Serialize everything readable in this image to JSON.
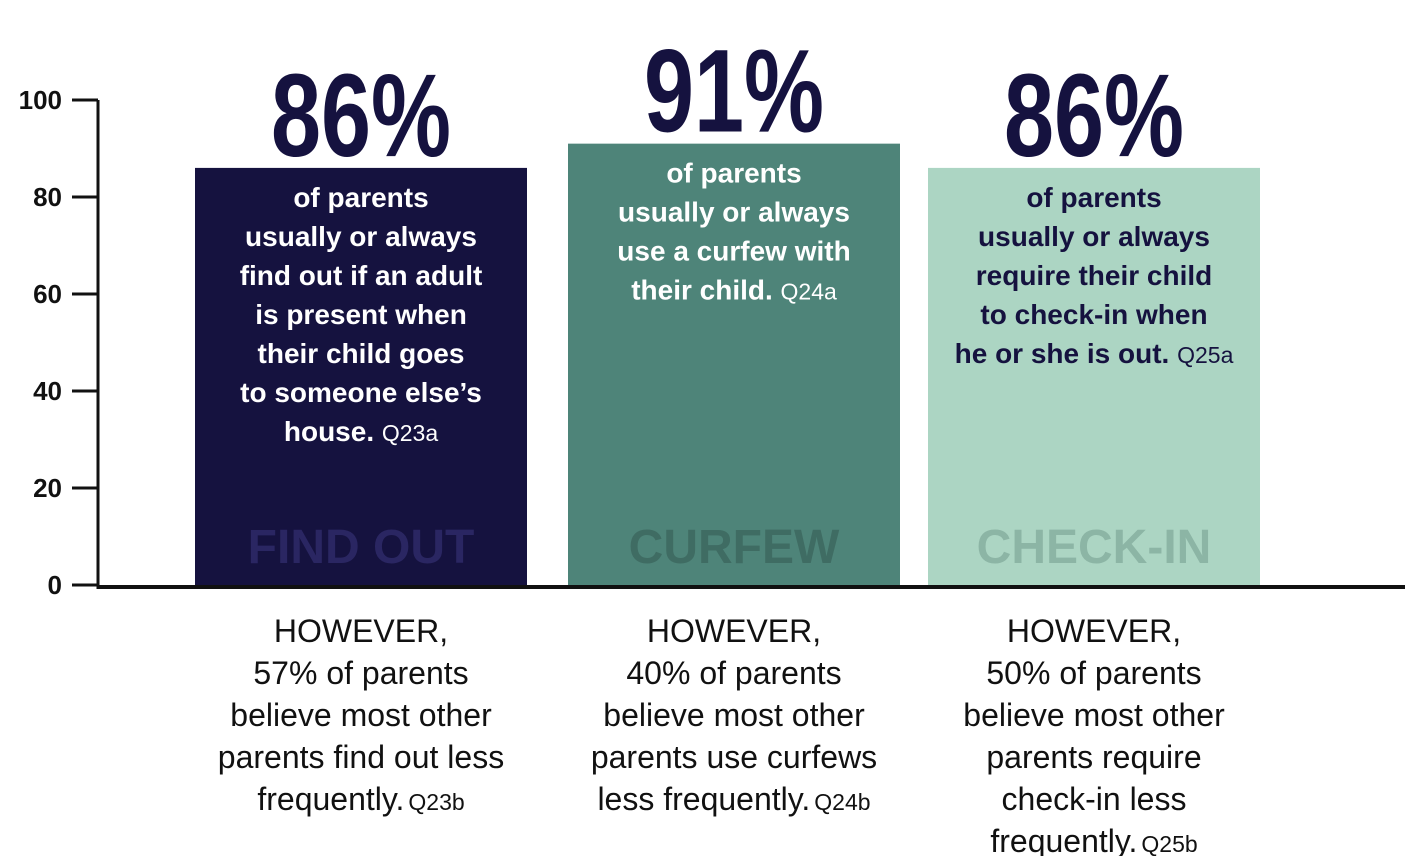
{
  "chart_data": {
    "type": "bar",
    "categories": [
      "FIND OUT",
      "CURFEW",
      "CHECK-IN"
    ],
    "values": [
      86,
      91,
      86
    ],
    "value_labels": [
      "86%",
      "91%",
      "86%"
    ],
    "colors": [
      "#15123f",
      "#4e8479",
      "#acd5c3"
    ],
    "description_colors": [
      "#ffffff",
      "#ffffff",
      "#15123f"
    ],
    "category_colors": [
      "#2a2662",
      "#3f6c63",
      "#8cb5a5"
    ],
    "descriptions": [
      [
        "of parents",
        "usually or always",
        "find out if an adult",
        "is present when",
        "their child goes",
        "to someone else’s",
        "house."
      ],
      [
        "of parents",
        "usually or always",
        "use a curfew with",
        "their child."
      ],
      [
        "of parents",
        "usually or always",
        "require their child",
        "to check-in when",
        "he or she is out."
      ]
    ],
    "description_codes": [
      "Q23a",
      "Q24a",
      "Q25a"
    ],
    "notes": [
      [
        "HOWEVER,",
        "57% of parents",
        "believe most other",
        "parents find out less",
        "frequently."
      ],
      [
        "HOWEVER,",
        "40% of parents",
        "believe most other",
        "parents use curfews",
        "less frequently."
      ],
      [
        "HOWEVER,",
        "50% of parents",
        "believe most other",
        "parents require",
        "check-in less",
        "frequently."
      ]
    ],
    "note_codes": [
      "Q23b",
      "Q24b",
      "Q25b"
    ],
    "ylim": [
      0,
      100
    ],
    "yticks": [
      0,
      20,
      40,
      60,
      80,
      100
    ]
  }
}
